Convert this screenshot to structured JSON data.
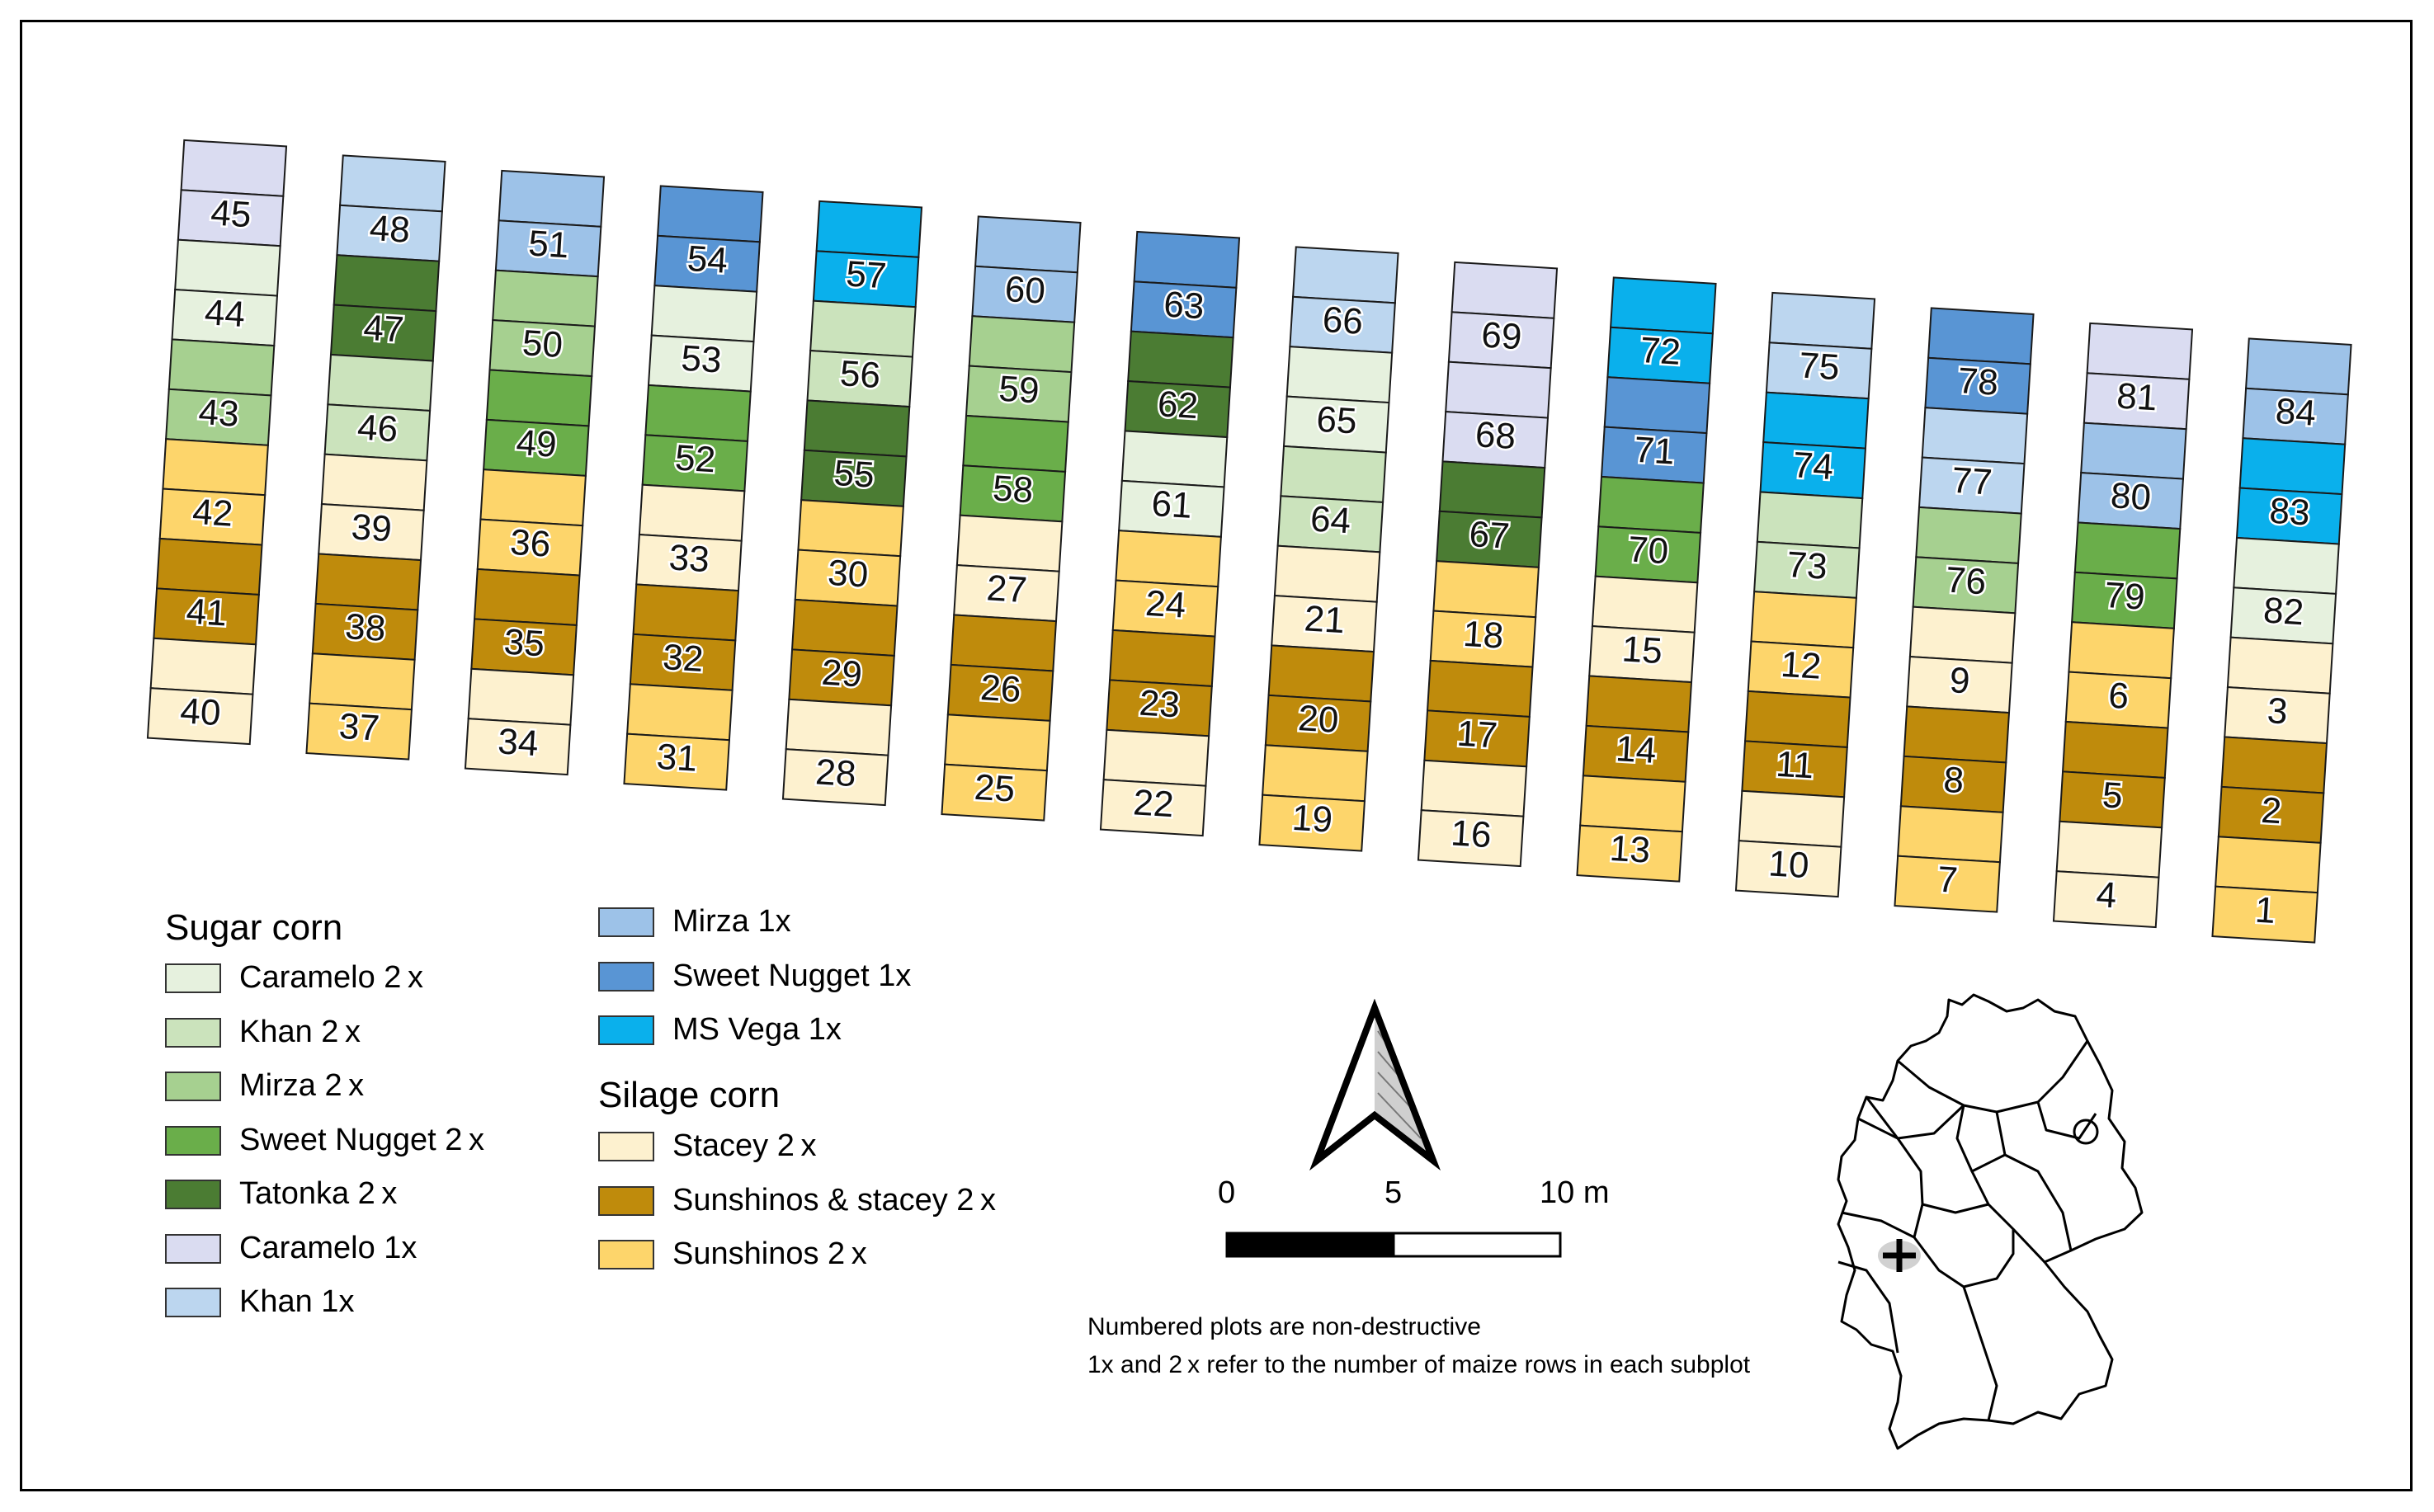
{
  "colors": {
    "caramelo_2x": "#e6f1de",
    "khan_2x": "#cbe3bc",
    "mirza_2x": "#a6d090",
    "sweet_nugget_2x": "#6aae4a",
    "tatonka_2x": "#4b7c33",
    "caramelo_1x": "#dadcf1",
    "khan_1x": "#bcd6ef",
    "mirza_1x": "#9dc2e8",
    "sweet_nugget_1x": "#5995d4",
    "ms_vega_1x": "#0ab0ec",
    "stacey_2x": "#fdf1cf",
    "sunshinos_stacey_2x": "#bf8b0c",
    "sunshinos_2x": "#fdd56b"
  },
  "legend": {
    "sugar_title": "Sugar corn",
    "silage_title": "Silage corn",
    "sugar_items": [
      {
        "key": "caramelo_2x",
        "label": "Caramelo 2 x"
      },
      {
        "key": "khan_2x",
        "label": "Khan 2 x"
      },
      {
        "key": "mirza_2x",
        "label": "Mirza 2 x"
      },
      {
        "key": "sweet_nugget_2x",
        "label": "Sweet Nugget 2 x"
      },
      {
        "key": "tatonka_2x",
        "label": "Tatonka 2 x"
      },
      {
        "key": "caramelo_1x",
        "label": "Caramelo 1x"
      },
      {
        "key": "khan_1x",
        "label": "Khan 1x"
      }
    ],
    "sugar_items_b": [
      {
        "key": "mirza_1x",
        "label": "Mirza 1x"
      },
      {
        "key": "sweet_nugget_1x",
        "label": "Sweet Nugget 1x"
      },
      {
        "key": "ms_vega_1x",
        "label": "MS Vega 1x"
      }
    ],
    "silage_items": [
      {
        "key": "stacey_2x",
        "label": "Stacey 2 x"
      },
      {
        "key": "sunshinos_stacey_2x",
        "label": "Sunshinos & stacey 2 x"
      },
      {
        "key": "sunshinos_2x",
        "label": "Sunshinos 2 x"
      }
    ]
  },
  "scale_bar": {
    "labels": [
      "0",
      "5",
      "10 m"
    ]
  },
  "notes": {
    "line1": "Numbered plots are non-destructive",
    "line2": "1x and 2 x refer to the number of maize rows in each subplot"
  },
  "strips": [
    [
      {
        "c": "caramelo_1x"
      },
      {
        "c": "caramelo_1x",
        "n": "45"
      },
      {
        "c": "caramelo_2x"
      },
      {
        "c": "caramelo_2x",
        "n": "44"
      },
      {
        "c": "mirza_2x"
      },
      {
        "c": "mirza_2x",
        "n": "43"
      },
      {
        "c": "sunshinos_2x"
      },
      {
        "c": "sunshinos_2x",
        "n": "42"
      },
      {
        "c": "sunshinos_stacey_2x"
      },
      {
        "c": "sunshinos_stacey_2x",
        "n": "41"
      },
      {
        "c": "stacey_2x"
      },
      {
        "c": "stacey_2x",
        "n": "40"
      }
    ],
    [
      {
        "c": "khan_1x"
      },
      {
        "c": "khan_1x",
        "n": "48"
      },
      {
        "c": "tatonka_2x"
      },
      {
        "c": "tatonka_2x",
        "n": "47"
      },
      {
        "c": "khan_2x"
      },
      {
        "c": "khan_2x",
        "n": "46"
      },
      {
        "c": "stacey_2x"
      },
      {
        "c": "stacey_2x",
        "n": "39"
      },
      {
        "c": "sunshinos_stacey_2x"
      },
      {
        "c": "sunshinos_stacey_2x",
        "n": "38"
      },
      {
        "c": "sunshinos_2x"
      },
      {
        "c": "sunshinos_2x",
        "n": "37"
      }
    ],
    [
      {
        "c": "mirza_1x"
      },
      {
        "c": "mirza_1x",
        "n": "51"
      },
      {
        "c": "mirza_2x"
      },
      {
        "c": "mirza_2x",
        "n": "50"
      },
      {
        "c": "sweet_nugget_2x"
      },
      {
        "c": "sweet_nugget_2x",
        "n": "49"
      },
      {
        "c": "sunshinos_2x"
      },
      {
        "c": "sunshinos_2x",
        "n": "36"
      },
      {
        "c": "sunshinos_stacey_2x"
      },
      {
        "c": "sunshinos_stacey_2x",
        "n": "35"
      },
      {
        "c": "stacey_2x"
      },
      {
        "c": "stacey_2x",
        "n": "34"
      }
    ],
    [
      {
        "c": "sweet_nugget_1x"
      },
      {
        "c": "sweet_nugget_1x",
        "n": "54"
      },
      {
        "c": "caramelo_2x"
      },
      {
        "c": "caramelo_2x",
        "n": "53"
      },
      {
        "c": "sweet_nugget_2x"
      },
      {
        "c": "sweet_nugget_2x",
        "n": "52"
      },
      {
        "c": "stacey_2x"
      },
      {
        "c": "stacey_2x",
        "n": "33"
      },
      {
        "c": "sunshinos_stacey_2x"
      },
      {
        "c": "sunshinos_stacey_2x",
        "n": "32"
      },
      {
        "c": "sunshinos_2x"
      },
      {
        "c": "sunshinos_2x",
        "n": "31"
      }
    ],
    [
      {
        "c": "ms_vega_1x"
      },
      {
        "c": "ms_vega_1x",
        "n": "57"
      },
      {
        "c": "khan_2x"
      },
      {
        "c": "khan_2x",
        "n": "56"
      },
      {
        "c": "tatonka_2x"
      },
      {
        "c": "tatonka_2x",
        "n": "55"
      },
      {
        "c": "sunshinos_2x"
      },
      {
        "c": "sunshinos_2x",
        "n": "30"
      },
      {
        "c": "sunshinos_stacey_2x"
      },
      {
        "c": "sunshinos_stacey_2x",
        "n": "29"
      },
      {
        "c": "stacey_2x"
      },
      {
        "c": "stacey_2x",
        "n": "28"
      }
    ],
    [
      {
        "c": "mirza_1x"
      },
      {
        "c": "mirza_1x",
        "n": "60"
      },
      {
        "c": "mirza_2x"
      },
      {
        "c": "mirza_2x",
        "n": "59"
      },
      {
        "c": "sweet_nugget_2x"
      },
      {
        "c": "sweet_nugget_2x",
        "n": "58"
      },
      {
        "c": "stacey_2x"
      },
      {
        "c": "stacey_2x",
        "n": "27"
      },
      {
        "c": "sunshinos_stacey_2x"
      },
      {
        "c": "sunshinos_stacey_2x",
        "n": "26"
      },
      {
        "c": "sunshinos_2x"
      },
      {
        "c": "sunshinos_2x",
        "n": "25"
      }
    ],
    [
      {
        "c": "sweet_nugget_1x"
      },
      {
        "c": "sweet_nugget_1x",
        "n": "63"
      },
      {
        "c": "tatonka_2x"
      },
      {
        "c": "tatonka_2x",
        "n": "62"
      },
      {
        "c": "caramelo_2x"
      },
      {
        "c": "caramelo_2x",
        "n": "61"
      },
      {
        "c": "sunshinos_2x"
      },
      {
        "c": "sunshinos_2x",
        "n": "24"
      },
      {
        "c": "sunshinos_stacey_2x"
      },
      {
        "c": "sunshinos_stacey_2x",
        "n": "23"
      },
      {
        "c": "stacey_2x"
      },
      {
        "c": "stacey_2x",
        "n": "22"
      }
    ],
    [
      {
        "c": "khan_1x"
      },
      {
        "c": "khan_1x",
        "n": "66"
      },
      {
        "c": "caramelo_2x"
      },
      {
        "c": "caramelo_2x",
        "n": "65"
      },
      {
        "c": "khan_2x"
      },
      {
        "c": "khan_2x",
        "n": "64"
      },
      {
        "c": "stacey_2x"
      },
      {
        "c": "stacey_2x",
        "n": "21"
      },
      {
        "c": "sunshinos_stacey_2x"
      },
      {
        "c": "sunshinos_stacey_2x",
        "n": "20"
      },
      {
        "c": "sunshinos_2x"
      },
      {
        "c": "sunshinos_2x",
        "n": "19"
      }
    ],
    [
      {
        "c": "caramelo_1x"
      },
      {
        "c": "caramelo_1x",
        "n": "69"
      },
      {
        "c": "caramelo_1x"
      },
      {
        "c": "caramelo_1x",
        "n": "68"
      },
      {
        "c": "tatonka_2x"
      },
      {
        "c": "tatonka_2x",
        "n": "67"
      },
      {
        "c": "sunshinos_2x"
      },
      {
        "c": "sunshinos_2x",
        "n": "18"
      },
      {
        "c": "sunshinos_stacey_2x"
      },
      {
        "c": "sunshinos_stacey_2x",
        "n": "17"
      },
      {
        "c": "stacey_2x"
      },
      {
        "c": "stacey_2x",
        "n": "16"
      }
    ],
    [
      {
        "c": "ms_vega_1x"
      },
      {
        "c": "ms_vega_1x",
        "n": "72"
      },
      {
        "c": "sweet_nugget_1x"
      },
      {
        "c": "sweet_nugget_1x",
        "n": "71"
      },
      {
        "c": "sweet_nugget_2x"
      },
      {
        "c": "sweet_nugget_2x",
        "n": "70"
      },
      {
        "c": "stacey_2x"
      },
      {
        "c": "stacey_2x",
        "n": "15"
      },
      {
        "c": "sunshinos_stacey_2x"
      },
      {
        "c": "sunshinos_stacey_2x",
        "n": "14"
      },
      {
        "c": "sunshinos_2x"
      },
      {
        "c": "sunshinos_2x",
        "n": "13"
      }
    ],
    [
      {
        "c": "khan_1x"
      },
      {
        "c": "khan_1x",
        "n": "75"
      },
      {
        "c": "ms_vega_1x"
      },
      {
        "c": "ms_vega_1x",
        "n": "74"
      },
      {
        "c": "khan_2x"
      },
      {
        "c": "khan_2x",
        "n": "73"
      },
      {
        "c": "sunshinos_2x"
      },
      {
        "c": "sunshinos_2x",
        "n": "12"
      },
      {
        "c": "sunshinos_stacey_2x"
      },
      {
        "c": "sunshinos_stacey_2x",
        "n": "11"
      },
      {
        "c": "stacey_2x"
      },
      {
        "c": "stacey_2x",
        "n": "10"
      }
    ],
    [
      {
        "c": "sweet_nugget_1x"
      },
      {
        "c": "sweet_nugget_1x",
        "n": "78"
      },
      {
        "c": "khan_1x"
      },
      {
        "c": "khan_1x",
        "n": "77"
      },
      {
        "c": "mirza_2x"
      },
      {
        "c": "mirza_2x",
        "n": "76"
      },
      {
        "c": "stacey_2x"
      },
      {
        "c": "stacey_2x",
        "n": "9"
      },
      {
        "c": "sunshinos_stacey_2x"
      },
      {
        "c": "sunshinos_stacey_2x",
        "n": "8"
      },
      {
        "c": "sunshinos_2x"
      },
      {
        "c": "sunshinos_2x",
        "n": "7"
      }
    ],
    [
      {
        "c": "caramelo_1x"
      },
      {
        "c": "caramelo_1x",
        "n": "81"
      },
      {
        "c": "mirza_1x"
      },
      {
        "c": "mirza_1x",
        "n": "80"
      },
      {
        "c": "sweet_nugget_2x"
      },
      {
        "c": "sweet_nugget_2x",
        "n": "79"
      },
      {
        "c": "sunshinos_2x"
      },
      {
        "c": "sunshinos_2x",
        "n": "6"
      },
      {
        "c": "sunshinos_stacey_2x"
      },
      {
        "c": "sunshinos_stacey_2x",
        "n": "5"
      },
      {
        "c": "stacey_2x"
      },
      {
        "c": "stacey_2x",
        "n": "4"
      }
    ],
    [
      {
        "c": "mirza_1x"
      },
      {
        "c": "mirza_1x",
        "n": "84"
      },
      {
        "c": "ms_vega_1x"
      },
      {
        "c": "ms_vega_1x",
        "n": "83"
      },
      {
        "c": "caramelo_2x"
      },
      {
        "c": "caramelo_2x",
        "n": "82"
      },
      {
        "c": "stacey_2x"
      },
      {
        "c": "stacey_2x",
        "n": "3"
      },
      {
        "c": "sunshinos_stacey_2x"
      },
      {
        "c": "sunshinos_stacey_2x",
        "n": "2"
      },
      {
        "c": "sunshinos_2x"
      },
      {
        "c": "sunshinos_2x",
        "n": "1"
      }
    ]
  ]
}
